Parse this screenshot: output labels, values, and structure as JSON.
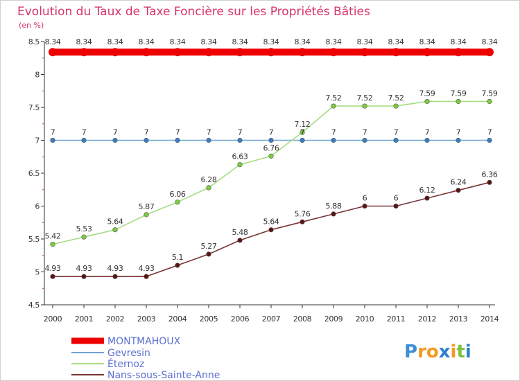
{
  "chart_data": {
    "type": "line",
    "title": "Evolution du Taux de Taxe Foncière sur les Propriétés Bâties",
    "unit_label": "(en %)",
    "x": [
      "2000",
      "2001",
      "2002",
      "2003",
      "2004",
      "2005",
      "2006",
      "2007",
      "2008",
      "2009",
      "2010",
      "2011",
      "2012",
      "2013",
      "2014"
    ],
    "ylim": [
      4.5,
      8.5
    ],
    "yticks": [
      4.5,
      5,
      5.5,
      6,
      6.5,
      7,
      7.5,
      8,
      8.5
    ],
    "ytick_labels": [
      "4.5",
      "5",
      "5.5",
      "6",
      "6.5",
      "7",
      "7.5",
      "8",
      "8.5"
    ],
    "grid": false,
    "series": [
      {
        "name": "MONTMAHOUX",
        "color": "#ee0000",
        "point_color": "#ee0000",
        "values": [
          8.34,
          8.34,
          8.34,
          8.34,
          8.34,
          8.34,
          8.34,
          8.34,
          8.34,
          8.34,
          8.34,
          8.34,
          8.34,
          8.34,
          8.34
        ],
        "labels": [
          "8.34",
          "8.34",
          "8.34",
          "8.34",
          "8.34",
          "8.34",
          "8.34",
          "8.34",
          "8.34",
          "8.34",
          "8.34",
          "8.34",
          "8.34",
          "8.34",
          "8.34"
        ]
      },
      {
        "name": "Gevresin",
        "color": "#6fa3d6",
        "point_color": "#3a7fc4",
        "values": [
          7,
          7,
          7,
          7,
          7,
          7,
          7,
          7,
          7,
          7,
          7,
          7,
          7,
          7,
          7
        ],
        "labels": [
          "7",
          "7",
          "7",
          "7",
          "7",
          "7",
          "7",
          "7",
          "7",
          "7",
          "7",
          "7",
          "7",
          "7",
          "7"
        ]
      },
      {
        "name": "Éternoz",
        "color": "#a6dc82",
        "point_color": "#7ccd3e",
        "values": [
          5.42,
          5.53,
          5.64,
          5.87,
          6.06,
          6.28,
          6.63,
          6.76,
          7.12,
          7.52,
          7.52,
          7.52,
          7.59,
          7.59,
          7.59
        ],
        "labels": [
          "5.42",
          "5.53",
          "5.64",
          "5.87",
          "6.06",
          "6.28",
          "6.63",
          "6.76",
          "7.12",
          "7.52",
          "7.52",
          "7.52",
          "7.59",
          "7.59",
          "7.59"
        ]
      },
      {
        "name": "Nans-sous-Sainte-Anne",
        "color": "#7a3535",
        "point_color": "#5a1414",
        "values": [
          4.93,
          4.93,
          4.93,
          4.93,
          5.1,
          5.27,
          5.48,
          5.64,
          5.76,
          5.88,
          6,
          6,
          6.12,
          6.24,
          6.36
        ],
        "labels": [
          "4.93",
          "4.93",
          "4.93",
          "4.93",
          "5.1",
          "5.27",
          "5.48",
          "5.64",
          "5.76",
          "5.88",
          "6",
          "6",
          "6.12",
          "6.24",
          "6.36"
        ]
      }
    ]
  },
  "brand": {
    "letters": [
      "P",
      "r",
      "o",
      "x",
      "i",
      "t",
      "i"
    ],
    "colors": [
      "#3d8fd4",
      "#f39a1e",
      "#f39a1e",
      "#2e7fcf",
      "#f39a1e",
      "#7cc142",
      "#2e7fcf"
    ]
  }
}
